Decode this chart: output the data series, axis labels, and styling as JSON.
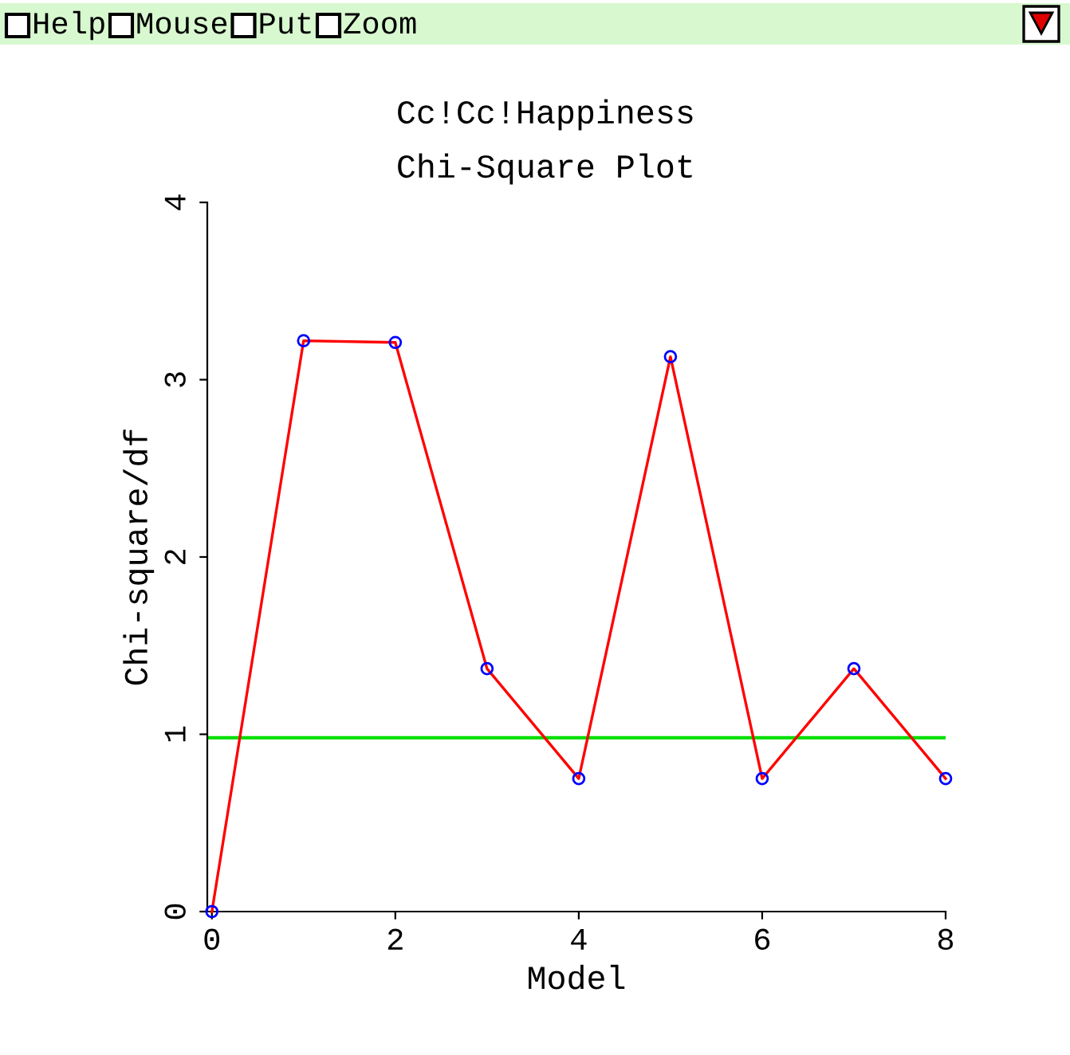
{
  "chart_data": {
    "type": "line",
    "title": "Cc!Cc!Happiness",
    "subtitle": "Chi-Square Plot",
    "xlabel": "Model",
    "ylabel": "Chi-square/df",
    "annotations": [
      "Help",
      "Mouse",
      "Put",
      "Zoom"
    ],
    "x": [
      0,
      1,
      2,
      3,
      4,
      5,
      6,
      7,
      8
    ],
    "series": [
      {
        "color": "#ff0000",
        "colors": [
          "#0000ff",
          "#0000ff",
          "#0000ff",
          "#0000ff",
          "#0000ff",
          "#0000ff",
          "#0000ff",
          "#0000ff",
          "#0000ff"
        ],
        "values": [
          0,
          3.22,
          3.21,
          1.37,
          0.75,
          3.13,
          0.75,
          1.37,
          0.75
        ]
      }
    ],
    "ref_lines": [
      {
        "axis": "y",
        "value": 0.98,
        "color": "#00e000"
      }
    ],
    "xlim": [
      -0.05,
      8
    ],
    "ylim": [
      0,
      4
    ],
    "xticks": [
      0,
      2,
      4,
      6,
      8
    ],
    "yticks": [
      0,
      1,
      2,
      3,
      4
    ],
    "grid": false,
    "legend": false,
    "marker": "circle",
    "line_style": "solid"
  }
}
